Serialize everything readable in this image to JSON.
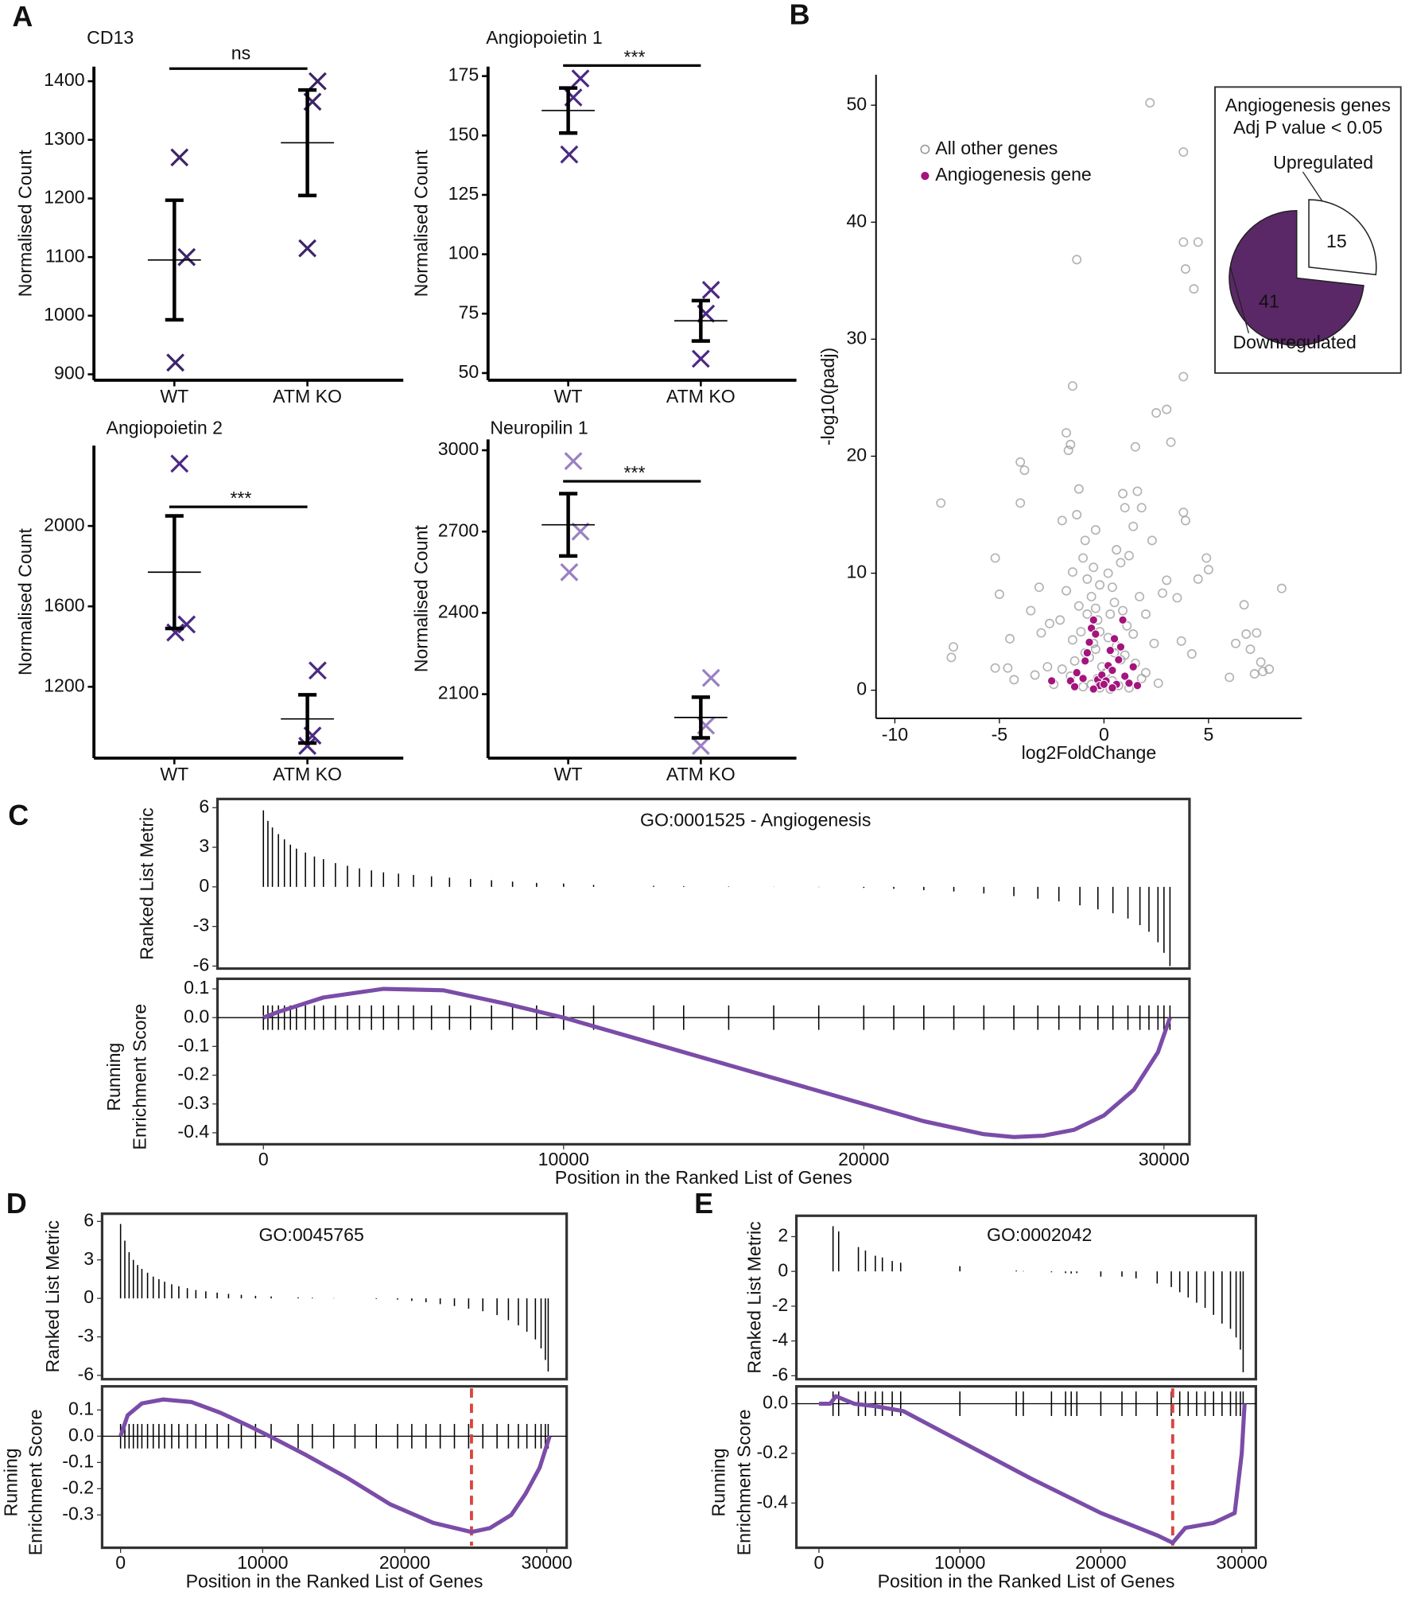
{
  "panel_labels": [
    "A",
    "B",
    "C",
    "D",
    "E"
  ],
  "chart_data": [
    {
      "type": "strip",
      "title": "CD13",
      "ylabel": "Normalised Count",
      "categories": [
        "WT",
        "ATM KO"
      ],
      "color": "#3d2468",
      "points": [
        [
          1270,
          1100,
          920
        ],
        [
          1400,
          1365,
          1115
        ]
      ],
      "means": [
        1095,
        1295
      ],
      "errors": [
        102,
        90
      ],
      "sig_label": "ns",
      "ylim": [
        890,
        1425
      ],
      "yticks": [
        900,
        1000,
        1100,
        1200,
        1300,
        1400
      ]
    },
    {
      "type": "strip",
      "title": "Angiopoietin 1",
      "ylabel": "Normalised Count",
      "categories": [
        "WT",
        "ATM KO"
      ],
      "color": "#4b2a84",
      "points": [
        [
          166,
          174,
          142
        ],
        [
          85,
          75,
          56
        ]
      ],
      "means": [
        160.5,
        72
      ],
      "errors": [
        9.5,
        8.5
      ],
      "sig_label": "***",
      "ylim": [
        47,
        179
      ],
      "yticks": [
        50,
        75,
        100,
        125,
        150,
        175
      ]
    },
    {
      "type": "strip",
      "title": "Angiopoietin 2",
      "ylabel": "Normalised Count",
      "categories": [
        "WT",
        "ATM KO"
      ],
      "color": "#4b2a84",
      "points": [
        [
          2310,
          1510,
          1470
        ],
        [
          1281,
          957,
          906
        ]
      ],
      "means": [
        1770,
        1040
      ],
      "errors": [
        280,
        120
      ],
      "sig_label": "***",
      "ylim": [
        845,
        2400
      ],
      "yticks": [
        1200,
        1600,
        2000
      ]
    },
    {
      "type": "strip",
      "title": "Neuropilin 1",
      "ylabel": "Normalised Count",
      "categories": [
        "WT",
        "ATM KO"
      ],
      "color": "#9a80c2",
      "points": [
        [
          2960,
          2700,
          2550
        ],
        [
          2160,
          1984,
          1909
        ]
      ],
      "means": [
        2725,
        2014
      ],
      "errors": [
        115,
        75
      ],
      "sig_label": "***",
      "ylim": [
        1864,
        3040
      ],
      "yticks": [
        2100,
        2400,
        2700,
        3000
      ]
    },
    {
      "type": "scatter",
      "xlabel": "log2FoldChange",
      "ylabel": "-log10(padj)",
      "xlim": [
        -10.9,
        9.46
      ],
      "ylim": [
        -2.4,
        52.6
      ],
      "xticks": [
        -10,
        -5,
        0,
        5
      ],
      "yticks": [
        0,
        10,
        20,
        30,
        40,
        50
      ],
      "series": [
        {
          "name": "All other genes",
          "color": "#9a9a9a",
          "x": [
            2.2,
            3.8,
            4.5,
            3.8,
            5.8,
            3.9,
            4.3,
            -1.3,
            3.8,
            -1.5,
            2.5,
            3.0,
            3.2,
            1.5,
            -1.8,
            -1.7,
            -1.6,
            -4.0,
            -3.8,
            -7.8,
            -4.0,
            -1.2,
            1.0,
            1.8,
            3.8,
            3.9,
            1.4,
            -2.0,
            -0.4,
            2.3,
            -5.2,
            4.9,
            5.0,
            4.5,
            -7.2,
            -7.3,
            -5.0,
            -4.5,
            -4.6,
            -5.2,
            -4.3,
            8.5,
            6.7,
            6.8,
            7.3,
            7.0,
            6.3,
            7.5,
            7.6,
            7.2,
            7.9,
            6.0,
            3.0,
            2.8,
            3.5,
            -3.1,
            -3.5,
            -2.6,
            -3.0,
            -2.7,
            -3.3,
            3.7,
            4.2,
            -1.0,
            -1.5,
            1.2,
            0.8,
            -0.8,
            -0.6,
            -0.4,
            -0.3,
            0.4,
            0.5,
            0.3,
            -1.2,
            -1.8,
            1.7,
            2.0,
            -2.1,
            2.4,
            -0.2,
            0.2,
            -0.5,
            0.6,
            -0.9,
            1.0,
            -1.4,
            1.5,
            -2.0,
            2.0,
            -0.1,
            0.1,
            -0.3,
            0.4,
            -0.6,
            0.7,
            -1.0,
            1.2,
            -2.4,
            2.6,
            -0.2,
            0.3,
            -1.6,
            1.8,
            -0.7,
            0.8,
            -0.4,
            0.5,
            -1.1,
            1.1,
            -1.5,
            1.4,
            -0.8,
            0.9,
            -0.5,
            0.6,
            -0.2,
            0.2,
            -1.3,
            0.9,
            1.6,
            -0.9
          ],
          "y": [
            50.2,
            46,
            38.3,
            38.3,
            38.5,
            36,
            34.3,
            36.8,
            26.8,
            26,
            23.7,
            24,
            21.2,
            20.8,
            22,
            20.5,
            21,
            19.5,
            18.8,
            16,
            16,
            17.2,
            15.6,
            15.6,
            15.2,
            14.5,
            14.0,
            14.5,
            13.7,
            12.8,
            11.3,
            11.3,
            10.3,
            9.5,
            3.7,
            2.8,
            8.2,
            4.4,
            1.9,
            1.9,
            0.9,
            8.7,
            7.3,
            4.8,
            4.9,
            3.5,
            4.0,
            2.4,
            1.6,
            1.4,
            1.8,
            1.1,
            9.4,
            8.3,
            7.9,
            8.8,
            6.8,
            5.7,
            4.9,
            2.0,
            1.3,
            4.2,
            3.1,
            11.3,
            10.1,
            11.5,
            10.9,
            9.5,
            8.0,
            7.0,
            6.0,
            8.8,
            7.5,
            6.5,
            7.2,
            8.5,
            8.0,
            6.5,
            6.0,
            4.0,
            5.0,
            4.5,
            4.0,
            3.8,
            3.2,
            3.0,
            2.5,
            2.3,
            1.8,
            1.5,
            2.0,
            1.5,
            1.0,
            0.8,
            0.5,
            0.4,
            0.3,
            0.2,
            0.5,
            0.6,
            0.2,
            0.1,
            1.2,
            1.0,
            2.8,
            2.6,
            3.5,
            3.2,
            5.0,
            5.5,
            4.3,
            4.8,
            6.5,
            6.8,
            10.5,
            12.0,
            9.0,
            10.0,
            15.0,
            16.8,
            17.0,
            12.8
          ]
        },
        {
          "name": "Angiogenesis gene",
          "color": "#a3157c",
          "x": [
            -2.5,
            -1.6,
            -1.3,
            -1.0,
            -0.9,
            -0.8,
            -0.7,
            -0.6,
            -0.5,
            -0.4,
            -0.3,
            -0.2,
            -0.1,
            0.1,
            0.2,
            0.3,
            0.4,
            0.5,
            0.6,
            0.7,
            0.8,
            0.9,
            1.0,
            1.2,
            1.4,
            -1.4,
            -0.5,
            0.0,
            0.4,
            1.6
          ],
          "y": [
            0.8,
            0.8,
            1.5,
            1.0,
            2.5,
            3.2,
            4.1,
            5.3,
            6.0,
            4.8,
            0.9,
            0.4,
            1.3,
            0.8,
            2.1,
            3.4,
            1.7,
            4.4,
            0.5,
            2.6,
            3.7,
            6.0,
            1.2,
            0.6,
            2.0,
            0.3,
            0.1,
            0.5,
            0.2,
            0.4
          ]
        }
      ]
    },
    {
      "type": "pie",
      "title": [
        "Angiogenesis genes",
        "Adj P value < 0.05"
      ],
      "categories": [
        "Upregulated",
        "Downregulated"
      ],
      "values": [
        15,
        41
      ],
      "colors": [
        "#ffffff",
        "#5a2866"
      ]
    },
    {
      "type": "gsea",
      "title": "GO:0001525 - Angiogenesis",
      "ylabel": "Ranked List Metric",
      "y2label": [
        "Running",
        "Enrichment Score"
      ],
      "xlabel": "Position in the Ranked List of Genes",
      "xlim": [
        -1530,
        30850
      ],
      "ylim": [
        -6.19,
        6.66
      ],
      "y2lim": [
        -0.44,
        0.135
      ],
      "xticks": [
        0,
        10000,
        20000,
        30000
      ],
      "yticks": [
        6,
        3,
        0,
        -3,
        -6
      ],
      "y2ticks": [
        0.1,
        {
          "value": 0,
          "label": "0.0"
        },
        -0.1,
        -0.2,
        -0.3,
        -0.4
      ],
      "positions": [
        0,
        150,
        300,
        500,
        700,
        900,
        1100,
        1400,
        1700,
        2000,
        2400,
        2800,
        3200,
        3600,
        4000,
        4500,
        5000,
        5600,
        6200,
        6900,
        7600,
        8300,
        9100,
        10000,
        11000,
        13000,
        14000,
        15500,
        17000,
        18500,
        20000,
        21000,
        22000,
        23000,
        24000,
        25000,
        25800,
        26500,
        27200,
        27800,
        28300,
        28800,
        29200,
        29500,
        29800,
        30000,
        30200
      ],
      "metric": [
        5.8,
        5.0,
        4.5,
        4.0,
        3.6,
        3.2,
        2.9,
        2.6,
        2.3,
        2.1,
        1.8,
        1.6,
        1.4,
        1.25,
        1.1,
        1.0,
        0.9,
        0.8,
        0.7,
        0.6,
        0.5,
        0.4,
        0.3,
        0.25,
        0.15,
        0.08,
        0.06,
        0.03,
        0.01,
        -0.02,
        -0.08,
        -0.15,
        -0.25,
        -0.35,
        -0.5,
        -0.7,
        -0.9,
        -1.1,
        -1.4,
        -1.7,
        -2.0,
        -2.4,
        -2.9,
        -3.4,
        -4.2,
        -5.0,
        -6.0
      ],
      "running_x": [
        0,
        500,
        2000,
        4000,
        6000,
        8000,
        10000,
        12000,
        15000,
        18000,
        20000,
        22000,
        24000,
        25000,
        26000,
        27000,
        28000,
        29000,
        29800,
        30200
      ],
      "running": [
        0.0,
        0.02,
        0.07,
        0.1,
        0.095,
        0.05,
        0.0,
        -0.06,
        -0.15,
        -0.24,
        -0.3,
        -0.36,
        -0.405,
        -0.415,
        -0.41,
        -0.39,
        -0.34,
        -0.25,
        -0.12,
        0.0
      ]
    },
    {
      "type": "gsea",
      "title": "GO:0045765",
      "ylabel": "Ranked List Metric",
      "y2label": [
        "Running",
        "Enrichment Score"
      ],
      "xlabel": "Position in the Ranked List of Genes",
      "xlim": [
        -1300,
        31400
      ],
      "ylim": [
        -6.3,
        6.6
      ],
      "y2lim": [
        -0.425,
        0.19
      ],
      "xticks": [
        0,
        10000,
        20000,
        30000
      ],
      "yticks": [
        6,
        3,
        0,
        -3,
        -6
      ],
      "y2ticks": [
        0.1,
        {
          "value": 0,
          "label": "0.0"
        },
        -0.1,
        -0.2,
        -0.3
      ],
      "positions": [
        0,
        300,
        600,
        900,
        1200,
        1500,
        1900,
        2300,
        2700,
        3100,
        3600,
        4100,
        4700,
        5300,
        6000,
        6800,
        7600,
        8500,
        9500,
        10600,
        12500,
        13500,
        15000,
        16500,
        18000,
        19500,
        20500,
        21500,
        22500,
        23500,
        24500,
        25500,
        26500,
        27300,
        28000,
        28600,
        29200,
        29600,
        29900,
        30100
      ],
      "metric": [
        5.8,
        4.5,
        3.6,
        3.0,
        2.6,
        2.3,
        2.0,
        1.7,
        1.5,
        1.3,
        1.1,
        0.95,
        0.8,
        0.65,
        0.55,
        0.45,
        0.35,
        0.28,
        0.2,
        0.15,
        0.08,
        0.05,
        0.02,
        0.0,
        -0.05,
        -0.1,
        -0.2,
        -0.3,
        -0.45,
        -0.6,
        -0.8,
        -1.0,
        -1.3,
        -1.7,
        -2.1,
        -2.6,
        -3.2,
        -3.9,
        -4.8,
        -5.7
      ],
      "running_x": [
        0,
        500,
        1500,
        3000,
        5000,
        7000,
        9000,
        10500,
        13000,
        16000,
        19000,
        22000,
        24700,
        26000,
        27500,
        28500,
        29500,
        30200
      ],
      "running": [
        0.0,
        0.08,
        0.125,
        0.14,
        0.13,
        0.09,
        0.04,
        0.0,
        -0.07,
        -0.16,
        -0.26,
        -0.33,
        -0.365,
        -0.35,
        -0.3,
        -0.22,
        -0.12,
        0.0
      ],
      "dashed_x": 24700
    },
    {
      "type": "gsea",
      "title": "GO:0002042",
      "ylabel": "Ranked List Metric",
      "y2label": [
        "Running",
        "Enrichment Score"
      ],
      "xlabel": "Position in the Ranked List of Genes",
      "xlim": [
        -1600,
        31000
      ],
      "ylim": [
        -6.2,
        3.2
      ],
      "y2lim": [
        -0.58,
        0.07
      ],
      "xticks": [
        0,
        10000,
        20000,
        30000
      ],
      "yticks": [
        2,
        0,
        -2,
        -4,
        -6
      ],
      "y2ticks": [
        {
          "value": 0,
          "label": "0.0"
        },
        -0.2,
        -0.4
      ],
      "positions": [
        1000,
        1400,
        2800,
        3300,
        4000,
        4500,
        5200,
        5800,
        10000,
        14000,
        14500,
        16500,
        17500,
        17900,
        18300,
        20000,
        21500,
        22500,
        24000,
        25000,
        25600,
        26200,
        26800,
        27400,
        28000,
        28600,
        29200,
        29600,
        29900,
        30100
      ],
      "metric": [
        2.6,
        2.3,
        1.4,
        1.2,
        0.9,
        0.8,
        0.6,
        0.5,
        0.3,
        0.05,
        0.02,
        -0.05,
        -0.1,
        -0.12,
        -0.1,
        -0.3,
        -0.3,
        -0.4,
        -0.7,
        -0.9,
        -1.2,
        -1.5,
        -1.8,
        -2.1,
        -2.5,
        -3.0,
        -3.3,
        -3.8,
        -4.5,
        -5.8
      ],
      "running_x": [
        0,
        800,
        1200,
        2500,
        4000,
        6000,
        10000,
        15000,
        20000,
        24000,
        25100,
        26000,
        28000,
        29500,
        30000,
        30200
      ],
      "running": [
        0.0,
        0.0,
        0.03,
        0.0,
        -0.01,
        -0.03,
        -0.15,
        -0.3,
        -0.44,
        -0.53,
        -0.56,
        -0.5,
        -0.48,
        -0.44,
        -0.2,
        0.0
      ],
      "dashed_x": 25100
    }
  ]
}
